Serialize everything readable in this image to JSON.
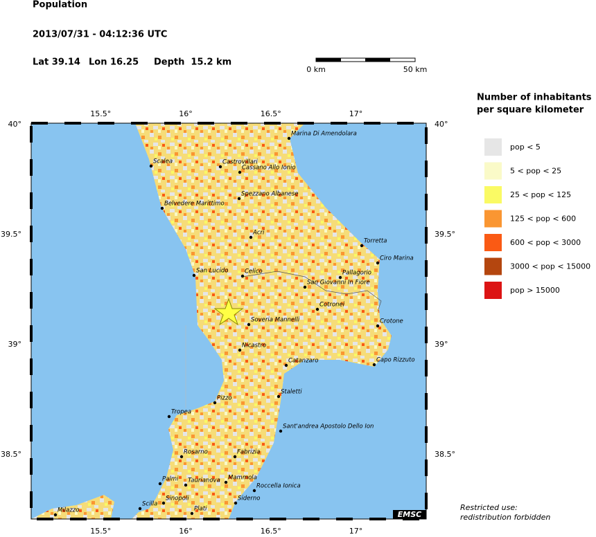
{
  "header": {
    "title": "Population",
    "datetime": "2013/07/31 - 04:12:36 UTC",
    "lat": "Lat 39.14",
    "lon": "Lon 16.25",
    "depth": "Depth  15.2 km"
  },
  "scale": {
    "start": "0 km",
    "end": "50 km"
  },
  "lon_ticks": [
    {
      "value": 15.5,
      "label": "15.5°"
    },
    {
      "value": 16,
      "label": "16°"
    },
    {
      "value": 16.5,
      "label": "16.5°"
    },
    {
      "value": 17,
      "label": "17°"
    }
  ],
  "lat_ticks": [
    {
      "value": 40,
      "label": "40°"
    },
    {
      "value": 39.5,
      "label": "39.5°"
    },
    {
      "value": 39,
      "label": "39°"
    },
    {
      "value": 38.5,
      "label": "38.5°"
    }
  ],
  "legend": {
    "title_lines": [
      "Number of inhabitants",
      "per square kilometer"
    ],
    "items": [
      {
        "label": "pop < 5",
        "color": "#e6e6e6"
      },
      {
        "label": "5 < pop < 25",
        "color": "#fafac8"
      },
      {
        "label": "25 < pop < 125",
        "color": "#fafa64"
      },
      {
        "label": "125 < pop < 600",
        "color": "#fa9632"
      },
      {
        "label": "600 < pop < 3000",
        "color": "#fa5a14"
      },
      {
        "label": "3000 < pop < 15000",
        "color": "#b4460f"
      },
      {
        "label": "pop > 15000",
        "color": "#dc1414"
      }
    ]
  },
  "cities": [
    "Marina Di Amendolara",
    "Scalea",
    "Castrovillari",
    "Cassano Allo Ionio",
    "Spezzano Albanese",
    "Belvedere Marittimo",
    "Acri",
    "Torretta",
    "Ciro Marina",
    "San Lucido",
    "Celico",
    "Pallagorio",
    "San Giovanni In Fiore",
    "Cotronei",
    "Soveria Mannelli",
    "Crotone",
    "Nicastro",
    "Catanzaro",
    "Capo Rizzuto",
    "Staletti",
    "Pizzo",
    "Tropea",
    "Sant'andrea Apostolo Dello Ion",
    "Rosarno",
    "Fabrizia",
    "Palmi",
    "Taurianova",
    "Mammola",
    "Roccella Ionica",
    "Sinopoli",
    "Siderno",
    "Scilla",
    "Plati",
    "Milazzo"
  ],
  "logo": "EMSC",
  "notice": [
    "Restricted use:",
    "redistribution forbidden"
  ]
}
